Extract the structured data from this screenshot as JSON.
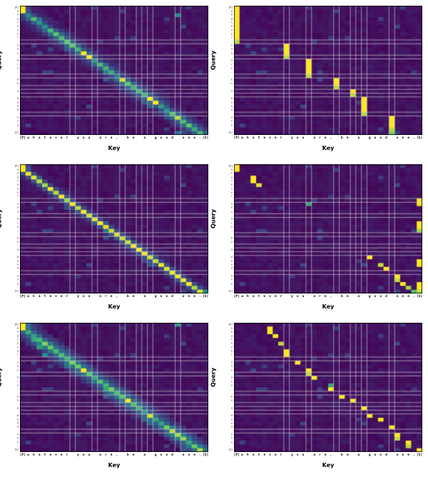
{
  "figure": {
    "background": "#ffffff",
    "description": "Grid of six transformer attention heatmaps (3 rows x 2 columns) over the character sequence of the sentence"
  },
  "chart_data": {
    "type": "heatmap",
    "layout": {
      "rows": 3,
      "cols": 2
    },
    "x_label": "Key",
    "y_label": "Query",
    "tokens": [
      "[P]",
      "w",
      "h",
      "a",
      "t",
      "e",
      "v",
      "e",
      "r",
      " ",
      "y",
      "o",
      "u",
      " ",
      "a",
      "r",
      "e",
      ",",
      " ",
      "b",
      "e",
      " ",
      "a",
      " ",
      "g",
      "o",
      "o",
      "d",
      " ",
      "o",
      "n",
      "e",
      ".",
      "[S]"
    ],
    "word_boundary_indices": [
      9,
      13,
      18,
      21,
      23,
      28
    ],
    "grid_color": "#d4d4d8",
    "colormap_stops": [
      [
        0.0,
        "#440154"
      ],
      [
        0.25,
        "#3b528b"
      ],
      [
        0.5,
        "#21918c"
      ],
      [
        0.75,
        "#5ec962"
      ],
      [
        1.0,
        "#fde725"
      ]
    ],
    "value_range": [
      0,
      1
    ],
    "panels": [
      {
        "name": "attention-head-row1-left",
        "pattern": "soft-diagonal",
        "diag_offset": -1,
        "diag_main": 0.72,
        "diag_decay": 0.42,
        "diag_var": 0.45,
        "cells": [
          [
            0,
            0,
            1
          ],
          [
            1,
            0,
            1
          ],
          [
            2,
            28,
            0.5
          ],
          [
            12,
            11,
            1
          ],
          [
            13,
            12,
            1
          ],
          [
            19,
            18,
            0.95
          ],
          [
            24,
            23,
            1
          ],
          [
            25,
            24,
            1
          ],
          [
            29,
            28,
            0.9
          ],
          [
            33,
            28,
            0.4
          ]
        ]
      },
      {
        "name": "attention-head-row1-right",
        "pattern": "sparse",
        "cells": [
          [
            0,
            0,
            1
          ],
          [
            1,
            0,
            1
          ],
          [
            2,
            0,
            1
          ],
          [
            3,
            0,
            1
          ],
          [
            4,
            0,
            1
          ],
          [
            5,
            0,
            1
          ],
          [
            6,
            0,
            1
          ],
          [
            7,
            0,
            1
          ],
          [
            8,
            0,
            1
          ],
          [
            9,
            0,
            0.9
          ],
          [
            10,
            9,
            1
          ],
          [
            11,
            9,
            1
          ],
          [
            12,
            9,
            1
          ],
          [
            13,
            9,
            0.9
          ],
          [
            14,
            13,
            1
          ],
          [
            15,
            13,
            1
          ],
          [
            16,
            13,
            1
          ],
          [
            17,
            13,
            1
          ],
          [
            18,
            13,
            0.9
          ],
          [
            19,
            18,
            1
          ],
          [
            20,
            18,
            1
          ],
          [
            21,
            18,
            0.9
          ],
          [
            22,
            21,
            1
          ],
          [
            23,
            21,
            0.9
          ],
          [
            24,
            23,
            1
          ],
          [
            25,
            23,
            1
          ],
          [
            26,
            23,
            1
          ],
          [
            27,
            23,
            1
          ],
          [
            28,
            23,
            0.9
          ],
          [
            29,
            28,
            1
          ],
          [
            30,
            28,
            1
          ],
          [
            31,
            28,
            1
          ],
          [
            32,
            28,
            0.9
          ],
          [
            33,
            28,
            0.8
          ]
        ]
      },
      {
        "name": "attention-head-row2-left",
        "pattern": "soft-diagonal",
        "diag_offset": -1,
        "diag_main": 0.95,
        "diag_decay": 0.22,
        "diag_var": 0.15,
        "cells": [
          [
            0,
            0,
            1
          ],
          [
            1,
            0,
            1
          ],
          [
            10,
            9,
            1
          ],
          [
            15,
            14,
            1
          ],
          [
            22,
            21,
            1
          ],
          [
            28,
            27,
            1
          ],
          [
            33,
            32,
            0.7
          ],
          [
            33,
            33,
            0.5
          ]
        ]
      },
      {
        "name": "attention-head-row2-right",
        "pattern": "sparse",
        "cells": [
          [
            0,
            0,
            1
          ],
          [
            1,
            0,
            1
          ],
          [
            3,
            3,
            1
          ],
          [
            4,
            3,
            1
          ],
          [
            5,
            4,
            0.95
          ],
          [
            10,
            13,
            0.6
          ],
          [
            9,
            33,
            1
          ],
          [
            10,
            33,
            1
          ],
          [
            15,
            33,
            1
          ],
          [
            16,
            33,
            1
          ],
          [
            17,
            33,
            0.85
          ],
          [
            24,
            24,
            1
          ],
          [
            25,
            33,
            1
          ],
          [
            26,
            33,
            1
          ],
          [
            26,
            26,
            0.9
          ],
          [
            27,
            27,
            1
          ],
          [
            29,
            29,
            1
          ],
          [
            30,
            29,
            0.9
          ],
          [
            31,
            30,
            1
          ],
          [
            31,
            33,
            1
          ],
          [
            32,
            31,
            0.85
          ],
          [
            32,
            33,
            1
          ],
          [
            33,
            32,
            0.7
          ],
          [
            33,
            33,
            0.9
          ]
        ]
      },
      {
        "name": "attention-head-row3-left",
        "pattern": "soft-diagonal",
        "diag_offset": -1,
        "diag_main": 0.8,
        "diag_decay": 0.5,
        "diag_var": 0.4,
        "cells": [
          [
            0,
            0,
            1
          ],
          [
            1,
            0,
            1
          ],
          [
            0,
            28,
            0.55
          ],
          [
            4,
            2,
            0.6
          ],
          [
            6,
            3,
            0.55
          ],
          [
            8,
            4,
            0.5
          ],
          [
            12,
            11,
            1
          ],
          [
            20,
            19,
            1
          ],
          [
            24,
            23,
            0.95
          ],
          [
            28,
            27,
            0.9
          ],
          [
            33,
            32,
            0.9
          ]
        ]
      },
      {
        "name": "attention-head-row3-right",
        "pattern": "sparse",
        "cells": [
          [
            1,
            6,
            1
          ],
          [
            2,
            6,
            1
          ],
          [
            3,
            7,
            1
          ],
          [
            5,
            8,
            0.9
          ],
          [
            7,
            9,
            1
          ],
          [
            8,
            9,
            1
          ],
          [
            10,
            11,
            1
          ],
          [
            12,
            13,
            1
          ],
          [
            13,
            13,
            0.9
          ],
          [
            14,
            14,
            1
          ],
          [
            16,
            17,
            0.6
          ],
          [
            17,
            17,
            1
          ],
          [
            19,
            19,
            1
          ],
          [
            20,
            21,
            1
          ],
          [
            22,
            23,
            1
          ],
          [
            24,
            24,
            1
          ],
          [
            25,
            26,
            1
          ],
          [
            27,
            28,
            1
          ],
          [
            29,
            29,
            1
          ],
          [
            30,
            29,
            0.9
          ],
          [
            31,
            31,
            1
          ],
          [
            32,
            31,
            0.9
          ],
          [
            33,
            33,
            1
          ]
        ]
      }
    ]
  }
}
